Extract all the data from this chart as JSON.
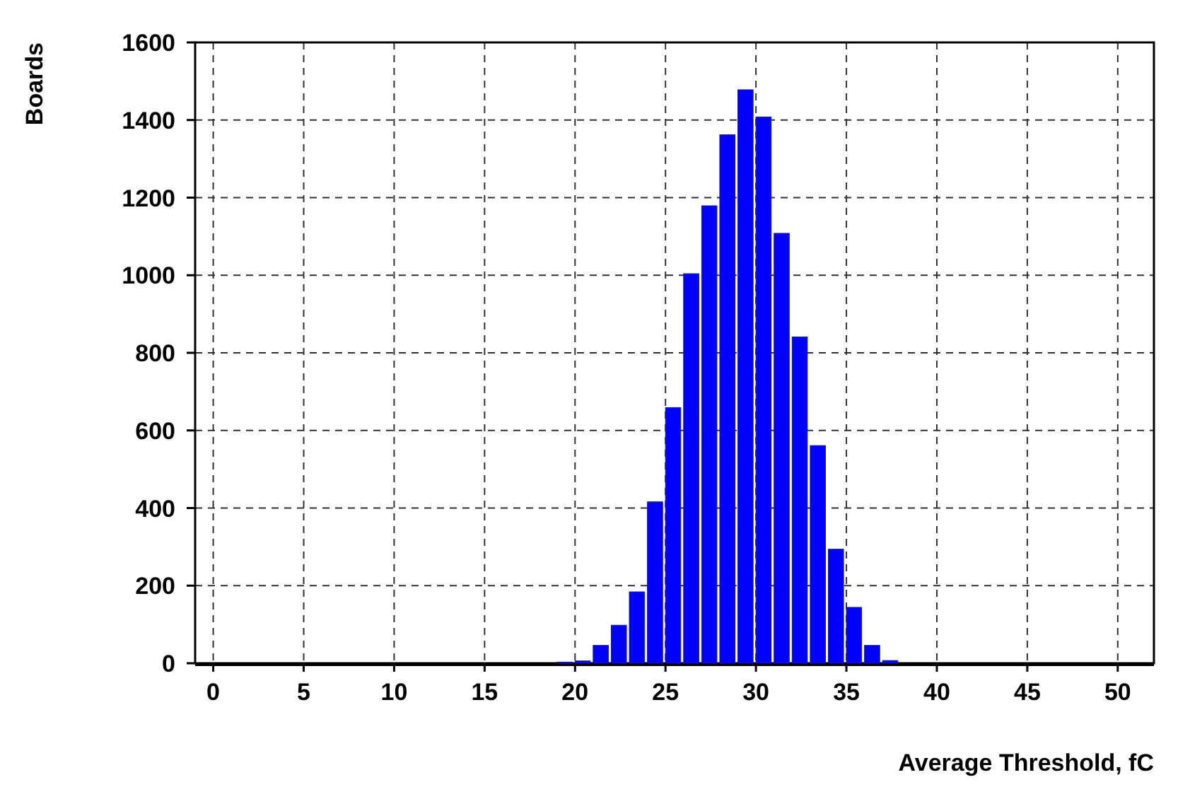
{
  "chart_data": {
    "type": "histogram",
    "xlabel": "Average Threshold, fC",
    "ylabel": "Boards",
    "bins": [
      19,
      20,
      21,
      22,
      23,
      24,
      25,
      26,
      27,
      28,
      29,
      30,
      31,
      32,
      33,
      34,
      35,
      36,
      37,
      38
    ],
    "values": [
      3,
      6,
      46,
      98,
      184,
      416,
      659,
      1004,
      1179,
      1362,
      1478,
      1408,
      1108,
      841,
      561,
      294,
      144,
      46,
      7
    ],
    "color": "#0000ff",
    "xlim": [
      -1,
      52
    ],
    "xticks": [
      0,
      5,
      10,
      15,
      20,
      25,
      30,
      35,
      40,
      45,
      50
    ],
    "ylim": [
      0,
      1600
    ],
    "yticks": [
      0,
      200,
      400,
      600,
      800,
      1000,
      1200,
      1400,
      1600
    ],
    "grid": true
  }
}
